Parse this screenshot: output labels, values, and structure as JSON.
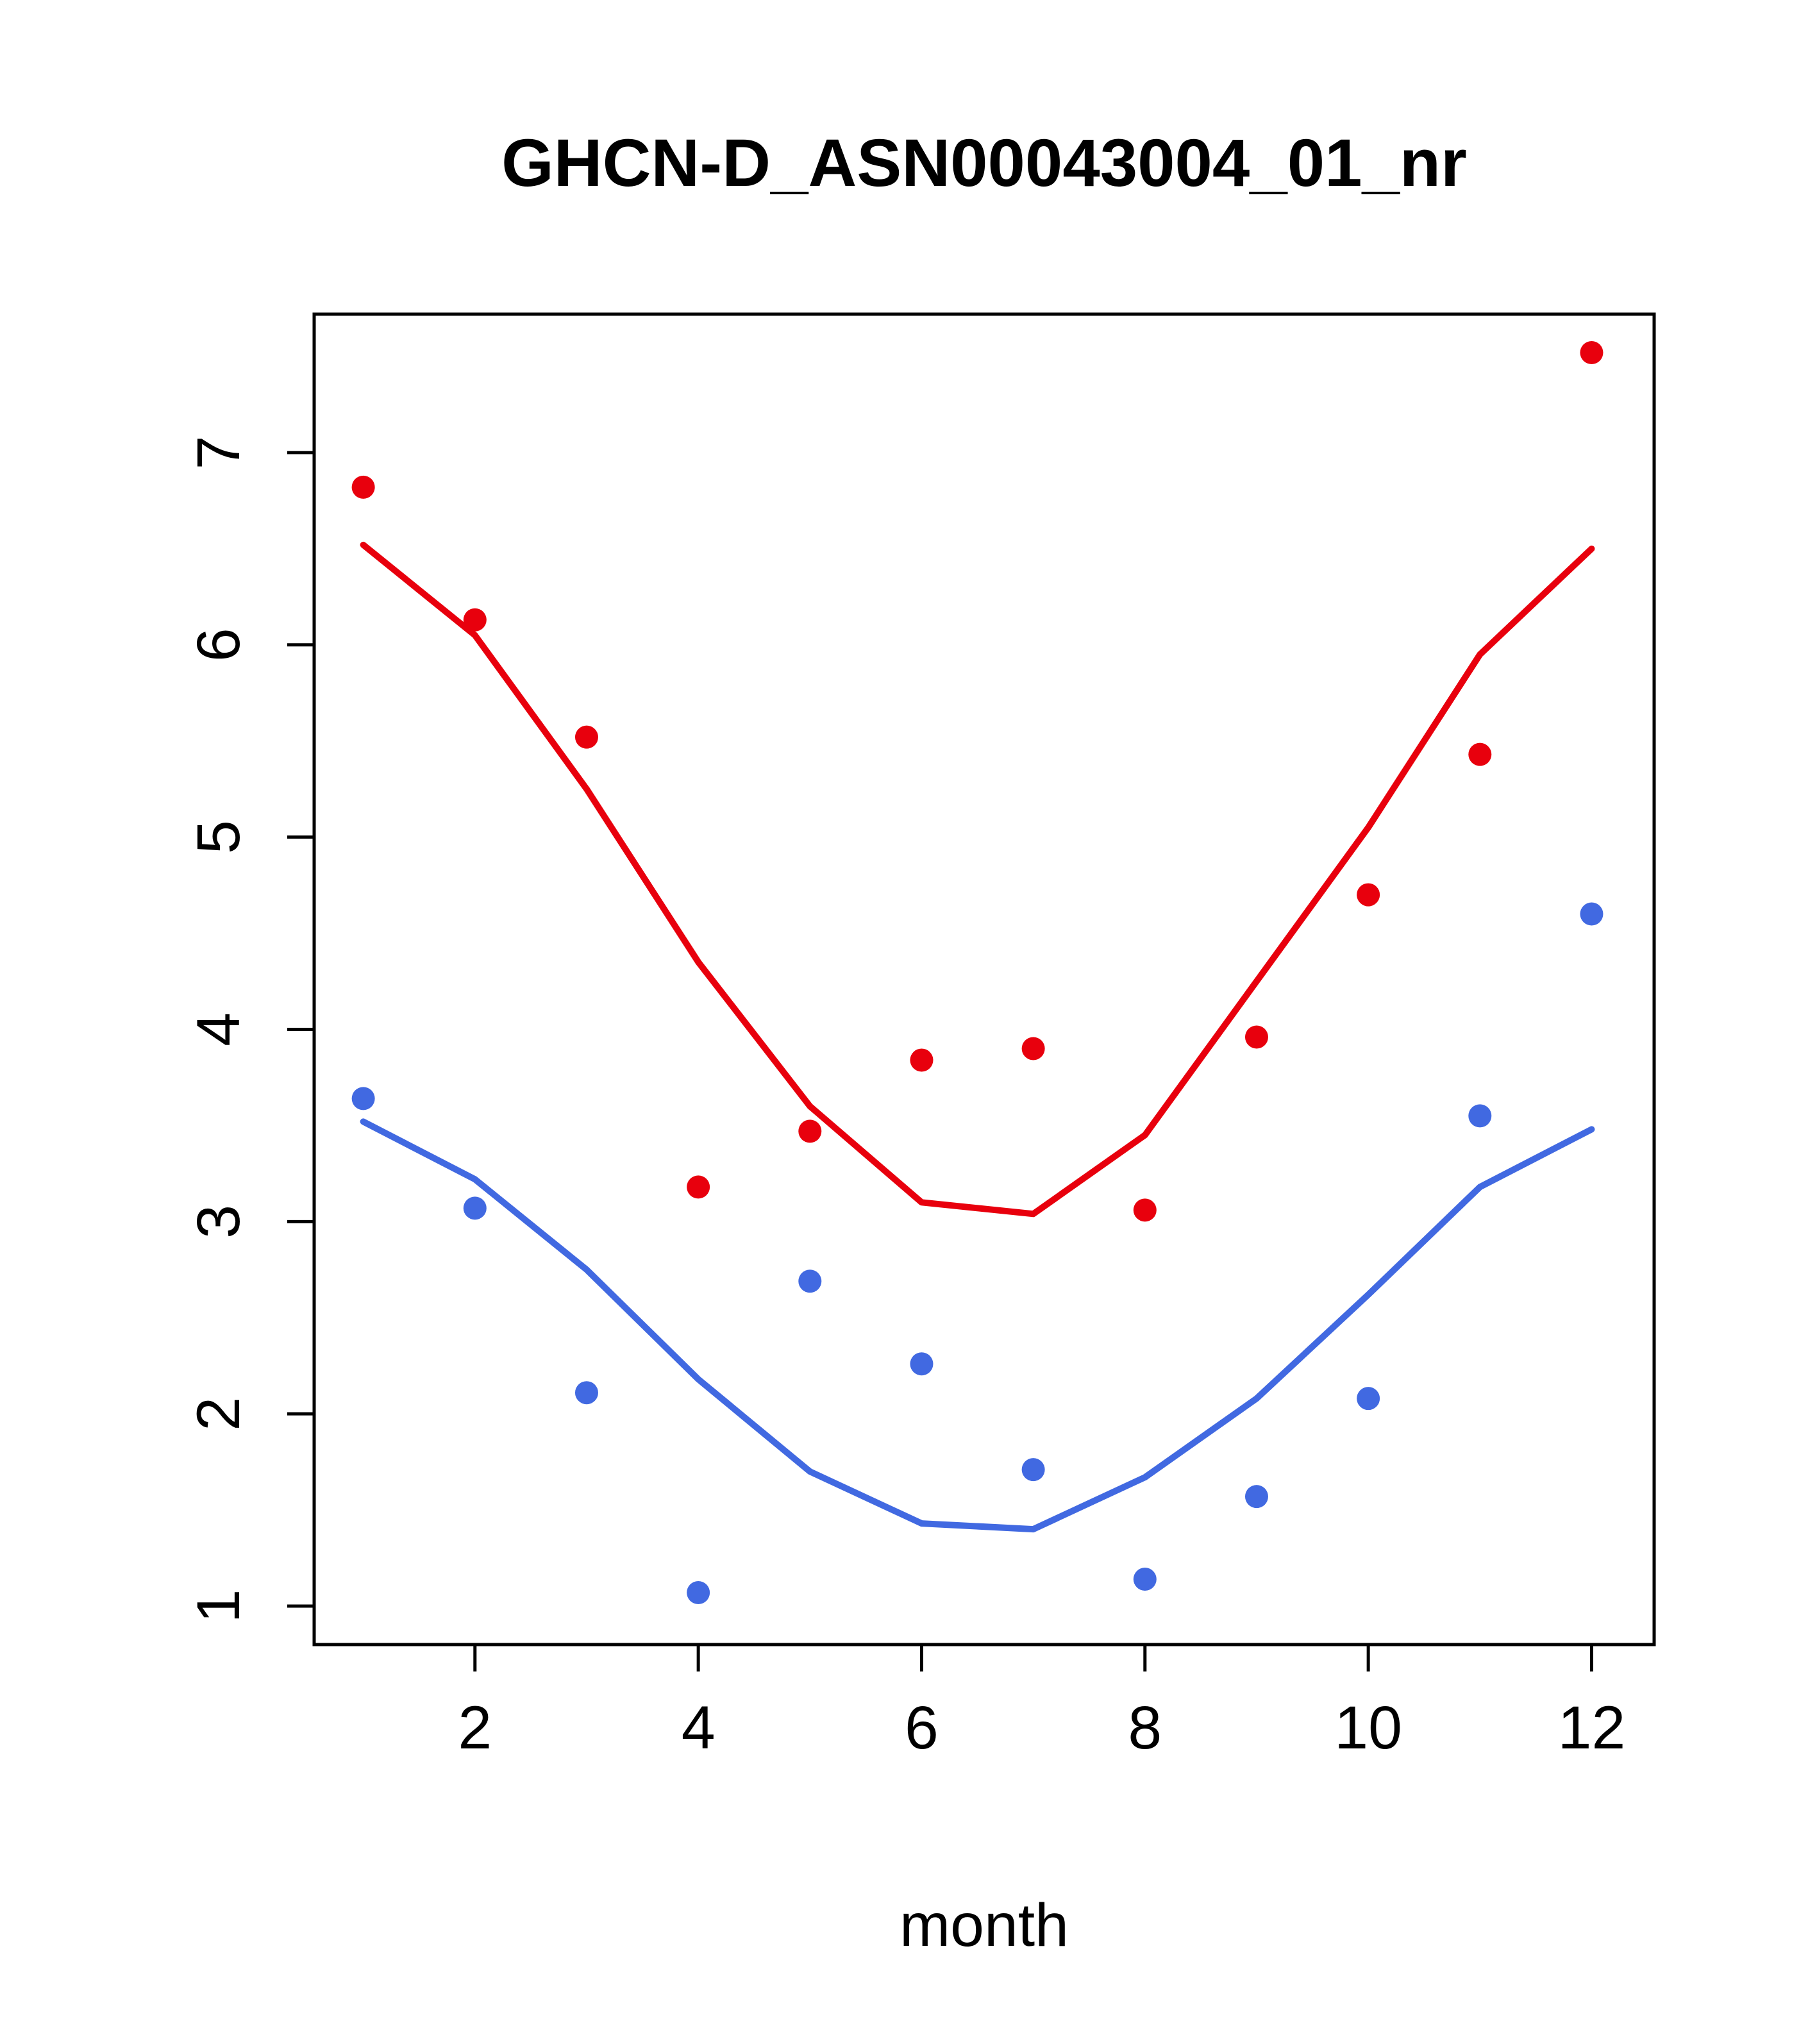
{
  "page": {
    "background": "#ffffff",
    "box_color": "#000000"
  },
  "chart_data": {
    "type": "line",
    "title": "GHCN-D_ASN00043004_01_nr",
    "xlabel": "month",
    "ylabel": "",
    "x": [
      1,
      2,
      3,
      4,
      5,
      6,
      7,
      8,
      9,
      10,
      11,
      12
    ],
    "xticks": [
      2,
      4,
      6,
      8,
      10,
      12
    ],
    "yticks": [
      1,
      2,
      3,
      4,
      5,
      6,
      7
    ],
    "xlim": [
      0.56,
      12.56
    ],
    "ylim": [
      0.8,
      7.72
    ],
    "grid": false,
    "legend": "none",
    "colors": {
      "upper": "#e8000d",
      "lower": "#4169e1"
    },
    "series": [
      {
        "name": "upper-line",
        "kind": "line",
        "color": "#e8000d",
        "values": [
          6.52,
          6.05,
          5.25,
          4.35,
          3.6,
          3.1,
          3.04,
          3.45,
          4.25,
          5.05,
          5.95,
          6.5
        ]
      },
      {
        "name": "lower-line",
        "kind": "line",
        "color": "#4169e1",
        "values": [
          3.52,
          3.22,
          2.75,
          2.18,
          1.7,
          1.43,
          1.4,
          1.67,
          2.08,
          2.62,
          3.18,
          3.48
        ]
      },
      {
        "name": "upper-points",
        "kind": "scatter",
        "color": "#e8000d",
        "values": [
          6.82,
          6.13,
          5.52,
          3.18,
          3.47,
          3.84,
          3.9,
          3.06,
          3.96,
          4.7,
          5.43,
          7.52
        ]
      },
      {
        "name": "lower-points",
        "kind": "scatter",
        "color": "#4169e1",
        "values": [
          3.64,
          3.07,
          2.11,
          1.07,
          2.69,
          2.26,
          1.71,
          1.14,
          1.57,
          2.08,
          3.55,
          4.6
        ]
      }
    ]
  }
}
